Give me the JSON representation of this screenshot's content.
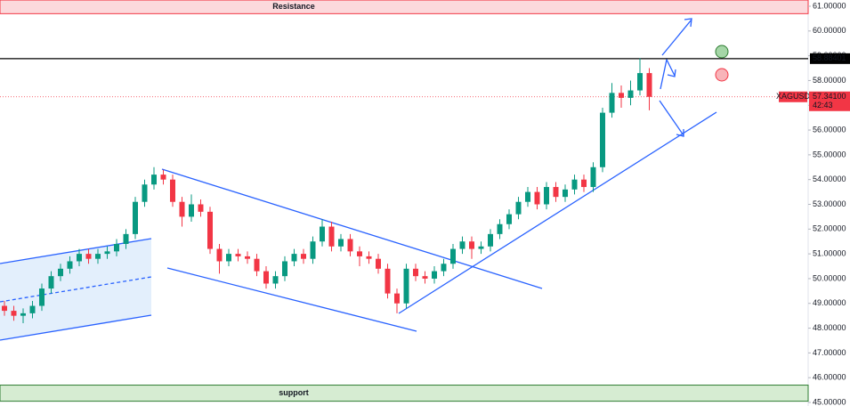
{
  "chart_data": {
    "type": "candlestick",
    "symbol": "XAGUSD",
    "countdown": "42:43",
    "ylim": [
      45,
      61
    ],
    "yticks": [
      {
        "value": 45,
        "label": "45.00000"
      },
      {
        "value": 46,
        "label": "46.00000"
      },
      {
        "value": 47,
        "label": "47.00000"
      },
      {
        "value": 48,
        "label": "48.00000"
      },
      {
        "value": 49,
        "label": "49.00000"
      },
      {
        "value": 50,
        "label": "50.00000"
      },
      {
        "value": 51,
        "label": "51.00000"
      },
      {
        "value": 52,
        "label": "52.00000"
      },
      {
        "value": 53,
        "label": "53.00000"
      },
      {
        "value": 54,
        "label": "54.00000"
      },
      {
        "value": 55,
        "label": "55.00000"
      },
      {
        "value": 56,
        "label": "56.00000"
      },
      {
        "value": 57,
        "label": "57.00000"
      },
      {
        "value": 58,
        "label": "58.00000"
      },
      {
        "value": 59,
        "label": "59.00000"
      },
      {
        "value": 60,
        "label": "60.00000"
      },
      {
        "value": 61,
        "label": "61.00000"
      }
    ],
    "up_color": "#089981",
    "down_color": "#f23645",
    "open": [
      48.9,
      48.7,
      48.5,
      48.6,
      48.9,
      49.6,
      50.1,
      50.4,
      50.7,
      51.0,
      50.8,
      51.0,
      51.1,
      51.4,
      51.8,
      53.1,
      53.8,
      54.2,
      54.0,
      53.1,
      52.5,
      53.0,
      52.7,
      51.2,
      50.7,
      51.0,
      50.9,
      50.8,
      50.3,
      49.8,
      50.1,
      50.7,
      51.0,
      50.8,
      51.5,
      52.1,
      51.3,
      51.6,
      51.1,
      50.9,
      50.8,
      50.4,
      49.4,
      49.0,
      50.4,
      50.1,
      50.0,
      50.3,
      50.6,
      51.2,
      51.5,
      51.2,
      51.3,
      51.8,
      52.2,
      52.6,
      53.1,
      53.5,
      53.0,
      53.7,
      53.3,
      53.6,
      54.0,
      53.7,
      54.5,
      56.7,
      57.5,
      57.3,
      57.6,
      58.3
    ],
    "high": [
      49.1,
      48.9,
      48.8,
      49.1,
      49.8,
      50.3,
      50.6,
      50.9,
      51.2,
      51.2,
      51.2,
      51.3,
      51.6,
      52.0,
      53.3,
      54.0,
      54.5,
      54.4,
      54.2,
      53.3,
      53.4,
      53.2,
      52.9,
      51.4,
      51.2,
      51.2,
      51.1,
      51.0,
      50.5,
      50.3,
      50.9,
      51.2,
      51.2,
      51.7,
      52.4,
      52.3,
      51.8,
      51.8,
      51.3,
      51.1,
      51.0,
      50.6,
      49.6,
      50.6,
      50.6,
      50.3,
      50.5,
      50.8,
      51.4,
      51.7,
      51.7,
      51.5,
      52.0,
      52.4,
      52.8,
      53.3,
      53.7,
      53.7,
      53.9,
      53.9,
      53.8,
      54.2,
      54.2,
      54.7,
      56.9,
      57.9,
      57.8,
      58.0,
      58.9,
      58.5
    ],
    "low": [
      48.5,
      48.3,
      48.2,
      48.4,
      48.7,
      49.4,
      49.9,
      50.2,
      50.5,
      50.6,
      50.6,
      50.8,
      50.9,
      51.2,
      51.6,
      52.9,
      53.6,
      53.8,
      52.9,
      52.1,
      52.3,
      52.5,
      51.0,
      50.2,
      50.5,
      50.7,
      50.6,
      50.1,
      49.6,
      49.6,
      49.9,
      50.5,
      50.6,
      50.6,
      51.3,
      51.1,
      51.1,
      50.9,
      50.5,
      50.6,
      50.2,
      49.2,
      48.6,
      48.8,
      49.9,
      49.8,
      49.8,
      50.1,
      50.4,
      51.0,
      50.8,
      51.0,
      51.1,
      51.6,
      52.0,
      52.4,
      52.9,
      52.8,
      52.8,
      53.1,
      53.1,
      53.4,
      53.5,
      53.5,
      54.3,
      56.5,
      56.9,
      57.0,
      57.4,
      56.8
    ],
    "close": [
      48.7,
      48.5,
      48.6,
      48.9,
      49.6,
      50.1,
      50.4,
      50.7,
      51.0,
      50.8,
      51.0,
      51.1,
      51.4,
      51.8,
      53.1,
      53.8,
      54.2,
      54.0,
      53.1,
      52.5,
      53.0,
      52.7,
      51.2,
      50.7,
      51.0,
      50.9,
      50.8,
      50.3,
      49.8,
      50.1,
      50.7,
      51.0,
      50.8,
      51.5,
      52.1,
      51.3,
      51.6,
      51.1,
      50.9,
      50.8,
      50.4,
      49.4,
      49.0,
      50.4,
      50.1,
      50.0,
      50.3,
      50.6,
      51.2,
      51.5,
      51.2,
      51.3,
      51.8,
      52.2,
      52.6,
      53.1,
      53.5,
      53.0,
      53.7,
      53.3,
      53.6,
      54.0,
      53.7,
      54.5,
      56.7,
      57.5,
      57.3,
      57.6,
      58.3,
      57.341
    ],
    "last_price": {
      "value": 57.341,
      "label": "57.34100"
    },
    "level": {
      "value": 58.88401,
      "label": "58.88401"
    },
    "zones": [
      {
        "label": "Resistance",
        "from": 60.7,
        "to": 61.25,
        "fill": "#fcd9dc",
        "stroke": "#f23645",
        "text_color": "#9c27b0"
      },
      {
        "label": "support",
        "from": 45.05,
        "to": 45.7,
        "fill": "#d6ecd2",
        "stroke": "#2e7d32",
        "text_color": "#9c27b0"
      }
    ]
  }
}
